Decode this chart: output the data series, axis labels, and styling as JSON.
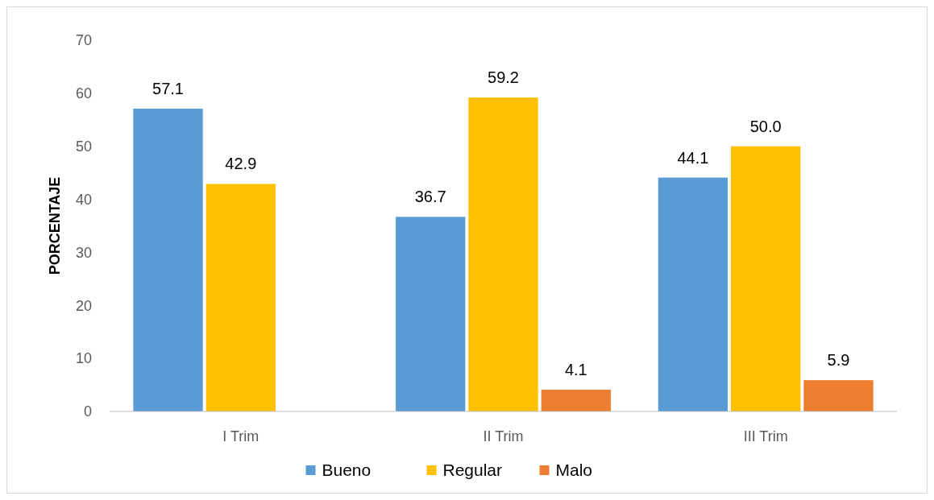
{
  "chart_data": {
    "type": "bar",
    "ylabel": "PORCENTAJE",
    "categories": [
      "I Trim",
      "II Trim",
      "III Trim"
    ],
    "series": [
      {
        "name": "Bueno",
        "color": "#5b9bd5",
        "values": [
          57.1,
          36.7,
          44.1
        ],
        "value_labels": [
          "57.1",
          "36.7",
          "44.1"
        ]
      },
      {
        "name": "Regular",
        "color": "#ffc000",
        "values": [
          42.9,
          59.2,
          50.0
        ],
        "value_labels": [
          "42.9",
          "59.2",
          "50.0"
        ]
      },
      {
        "name": "Malo",
        "color": "#ed7d31",
        "values": [
          null,
          4.1,
          5.9
        ],
        "value_labels": [
          null,
          "4.1",
          "5.9"
        ]
      }
    ],
    "ylim": [
      0,
      70
    ],
    "yticks": [
      0,
      10,
      20,
      30,
      40,
      50,
      60,
      70
    ],
    "grid": false,
    "legend": "bottom"
  }
}
